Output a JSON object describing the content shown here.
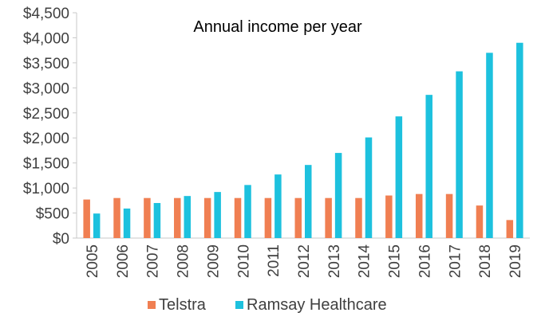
{
  "chart_data": {
    "type": "bar",
    "title": "Annual income per year",
    "xlabel": "",
    "ylabel": "",
    "ylim": [
      0,
      4500
    ],
    "yticks": [
      0,
      500,
      1000,
      1500,
      2000,
      2500,
      3000,
      3500,
      4000,
      4500
    ],
    "ytick_labels": [
      "$0",
      "$500",
      "$1,000",
      "$1,500",
      "$2,000",
      "$2,500",
      "$3,000",
      "$3,500",
      "$4,000",
      "$4,500"
    ],
    "grid": false,
    "legend_position": "bottom",
    "categories": [
      "2005",
      "2006",
      "2007",
      "2008",
      "2009",
      "2010",
      "2011",
      "2012",
      "2013",
      "2014",
      "2015",
      "2016",
      "2017",
      "2018",
      "2019"
    ],
    "series": [
      {
        "name": "Telstra",
        "color": "#f07f52",
        "values": [
          770,
          800,
          800,
          800,
          800,
          800,
          800,
          800,
          800,
          800,
          850,
          880,
          880,
          650,
          360
        ]
      },
      {
        "name": "Ramsay Healthcare",
        "color": "#1dc1de",
        "values": [
          490,
          590,
          700,
          840,
          920,
          1060,
          1270,
          1460,
          1700,
          2010,
          2430,
          2860,
          3330,
          3700,
          3900
        ]
      }
    ]
  }
}
